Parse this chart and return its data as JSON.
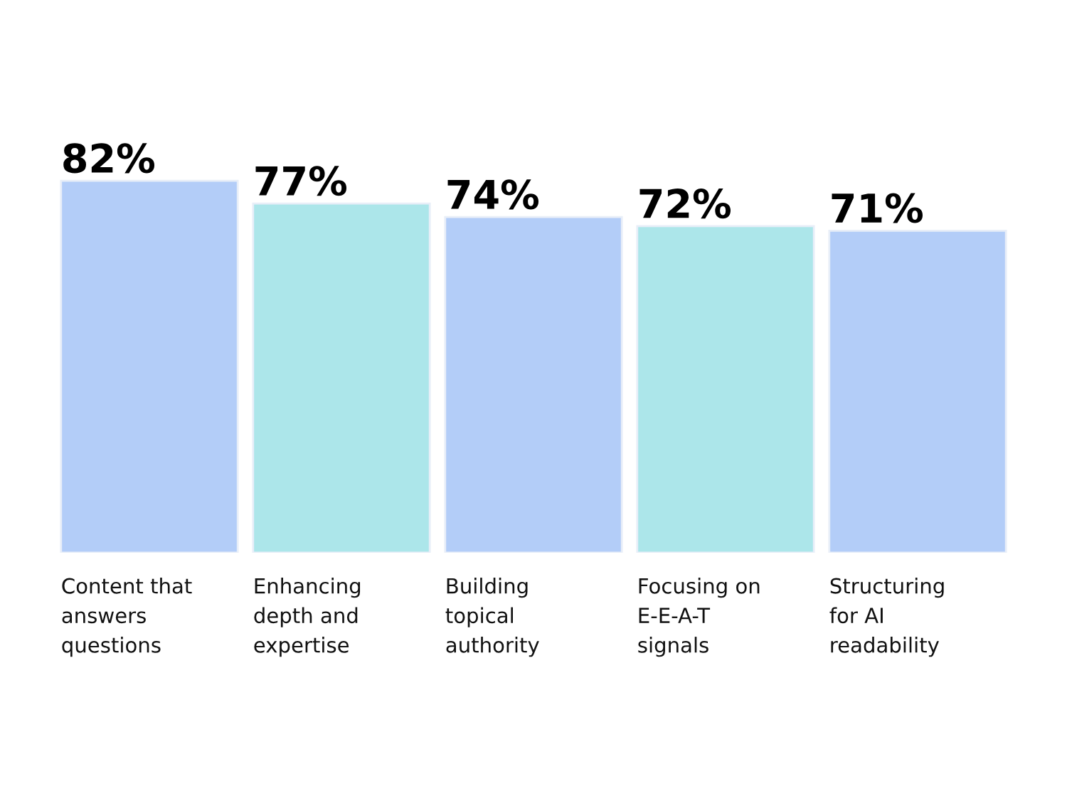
{
  "chart_data": {
    "type": "bar",
    "categories": [
      "Content that\nanswers\nquestions",
      "Enhancing\ndepth and\nexpertise",
      "Building\ntopical\nauthority",
      "Focusing on\nE-E-A-T\nsignals",
      "Structuring\nfor AI\nreadability"
    ],
    "values": [
      82,
      77,
      74,
      72,
      71
    ],
    "value_labels": [
      "82%",
      "77%",
      "74%",
      "72%",
      "71%"
    ],
    "colors": [
      "#b3cdf8",
      "#ace6ea",
      "#b3cdf8",
      "#ace6ea",
      "#b3cdf8"
    ],
    "legend": false
  }
}
